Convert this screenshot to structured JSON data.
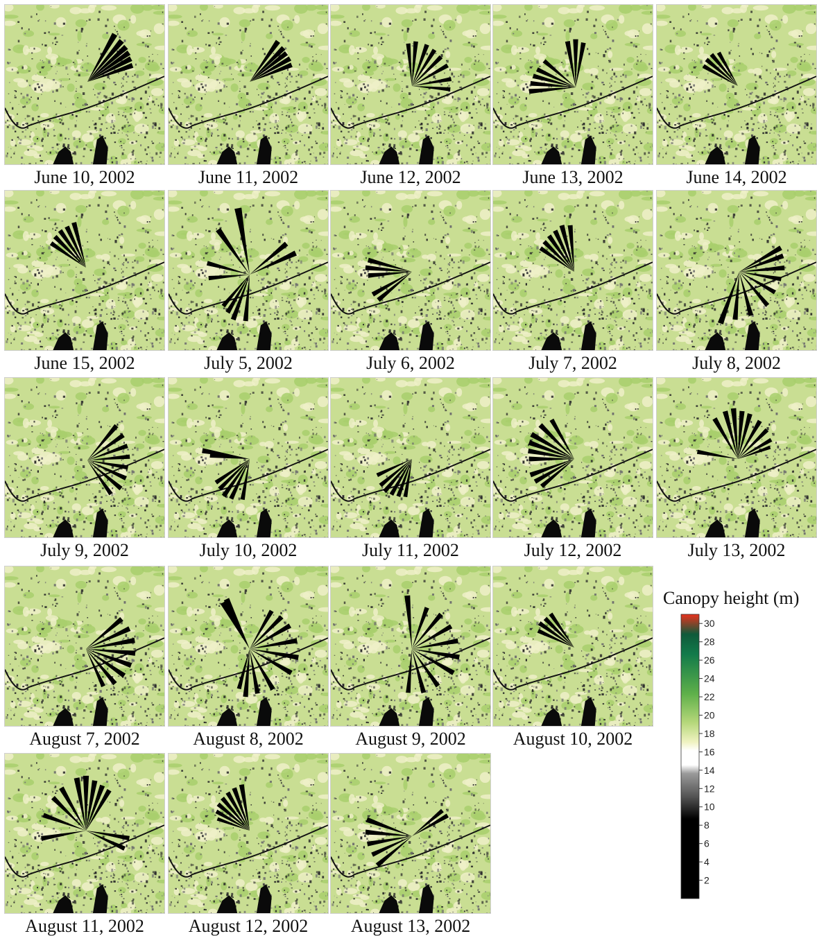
{
  "panels": [
    {
      "caption": "June 10, 2002"
    },
    {
      "caption": "June 11, 2002"
    },
    {
      "caption": "June 12, 2002"
    },
    {
      "caption": "June 13, 2002"
    },
    {
      "caption": "June 14, 2002"
    },
    {
      "caption": "June 15, 2002"
    },
    {
      "caption": "July 5, 2002"
    },
    {
      "caption": "July 6, 2002"
    },
    {
      "caption": "July 7, 2002"
    },
    {
      "caption": "July 8, 2002"
    },
    {
      "caption": "July 9, 2002"
    },
    {
      "caption": "July 10, 2002"
    },
    {
      "caption": "July 11, 2002"
    },
    {
      "caption": "July 12, 2002"
    },
    {
      "caption": "July 13, 2002"
    },
    {
      "caption": "August 7, 2002"
    },
    {
      "caption": "August 8, 2002"
    },
    {
      "caption": "August 9, 2002"
    },
    {
      "caption": "August 10, 2002"
    },
    {
      "caption": "August 11, 2002"
    },
    {
      "caption": "August 12, 2002"
    },
    {
      "caption": "August 13, 2002"
    }
  ],
  "legend": {
    "title": "Canopy height (m)",
    "ticks": [
      "30",
      "28",
      "26",
      "24",
      "22",
      "20",
      "18",
      "16",
      "14",
      "12",
      "10",
      "8",
      "6",
      "4",
      "2"
    ],
    "range": [
      0,
      31
    ],
    "colors": {
      "low": "#000000",
      "mid_dark": "#555555",
      "gray": "#9a9a9a",
      "white": "#ffffff",
      "light_yellow": "#f0f3c2",
      "light_green": "#b5d77a",
      "green": "#5fb04a",
      "dark_green": "#127a4a",
      "red": "#e8321d"
    }
  },
  "map_colors": {
    "background": "#c9de93",
    "green_patch": "#a8cf6c",
    "pale_patch": "#eef0c8",
    "dark_texture": "#2b2b2b",
    "road": "#111111",
    "fan": "#000000"
  }
}
